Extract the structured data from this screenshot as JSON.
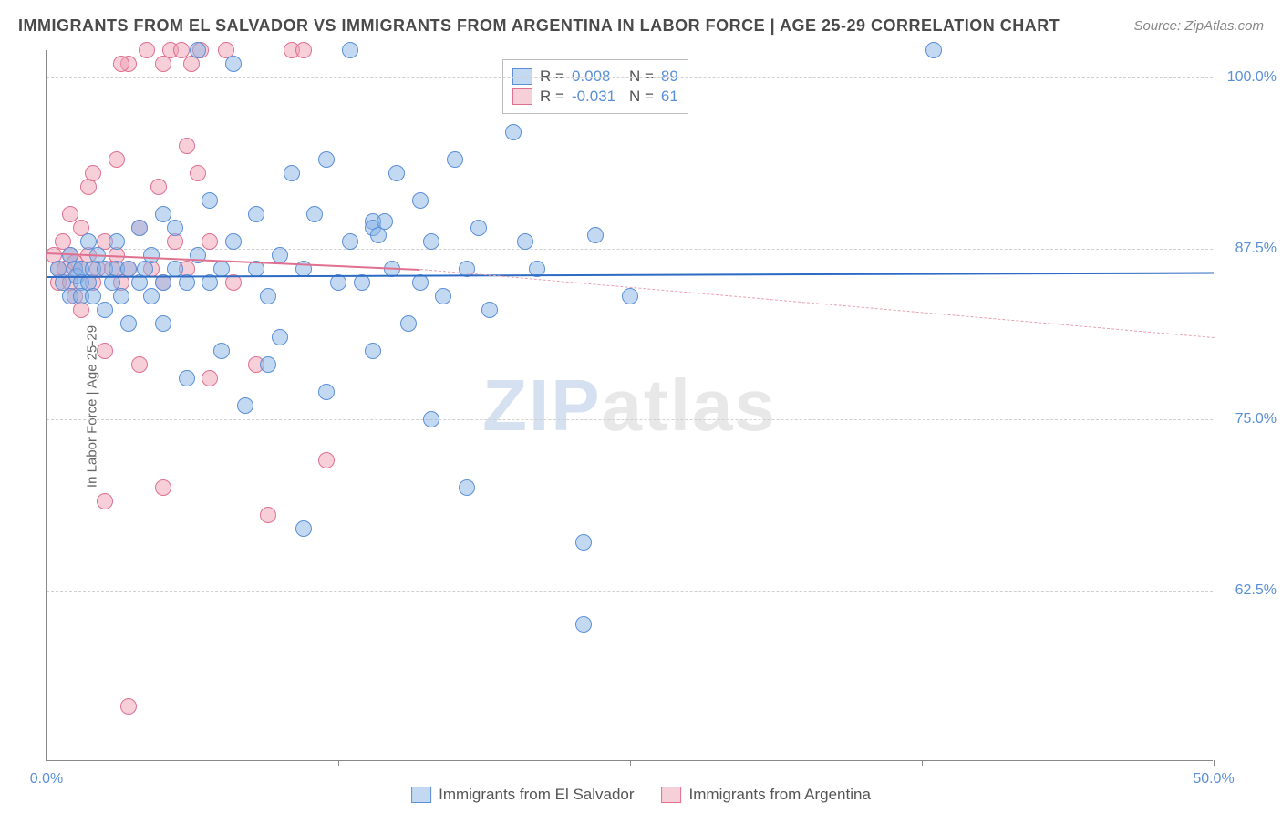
{
  "title": "IMMIGRANTS FROM EL SALVADOR VS IMMIGRANTS FROM ARGENTINA IN LABOR FORCE | AGE 25-29 CORRELATION CHART",
  "source": "Source: ZipAtlas.com",
  "y_axis_label": "In Labor Force | Age 25-29",
  "watermark_a": "ZIP",
  "watermark_b": "atlas",
  "chart": {
    "type": "scatter",
    "xlim": [
      0,
      50
    ],
    "ylim": [
      50,
      102
    ],
    "x_ticks": [
      0,
      12.5,
      25,
      37.5,
      50
    ],
    "x_tick_labels": {
      "0": "0.0%",
      "50": "50.0%"
    },
    "y_ticks": [
      62.5,
      75.0,
      87.5,
      100.0
    ],
    "y_tick_labels": [
      "62.5%",
      "75.0%",
      "87.5%",
      "100.0%"
    ],
    "grid_color": "#d0d0d0",
    "background_color": "#ffffff",
    "marker_size": 18,
    "series": [
      {
        "name": "Immigrants from El Salvador",
        "color_fill": "rgba(135,180,230,0.5)",
        "color_stroke": "#5b8fd6",
        "R": "0.008",
        "N": "89",
        "trend": {
          "x1": 0,
          "y1": 85.5,
          "x2": 50,
          "y2": 85.8,
          "color": "#2d6bc4",
          "width": 2,
          "style": "solid"
        },
        "points": [
          [
            0.5,
            86
          ],
          [
            0.7,
            85
          ],
          [
            1,
            87
          ],
          [
            1,
            84
          ],
          [
            1.2,
            86
          ],
          [
            1.3,
            85.5
          ],
          [
            1.5,
            86
          ],
          [
            1.5,
            85
          ],
          [
            1.5,
            84
          ],
          [
            1.8,
            88
          ],
          [
            1.8,
            85
          ],
          [
            2,
            86
          ],
          [
            2,
            84
          ],
          [
            2.2,
            87
          ],
          [
            2.5,
            83
          ],
          [
            2.5,
            86
          ],
          [
            2.8,
            85
          ],
          [
            3,
            86
          ],
          [
            3,
            88
          ],
          [
            3.2,
            84
          ],
          [
            3.5,
            86
          ],
          [
            3.5,
            82
          ],
          [
            4,
            85
          ],
          [
            4,
            89
          ],
          [
            4.2,
            86
          ],
          [
            4.5,
            84
          ],
          [
            4.5,
            87
          ],
          [
            5,
            90
          ],
          [
            5,
            85
          ],
          [
            5,
            82
          ],
          [
            5.5,
            86
          ],
          [
            5.5,
            89
          ],
          [
            6,
            85
          ],
          [
            6,
            78
          ],
          [
            6.5,
            102
          ],
          [
            6.5,
            87
          ],
          [
            7,
            85
          ],
          [
            7,
            91
          ],
          [
            7.5,
            86
          ],
          [
            7.5,
            80
          ],
          [
            8,
            88
          ],
          [
            8,
            101
          ],
          [
            8.5,
            76
          ],
          [
            9,
            86
          ],
          [
            9,
            90
          ],
          [
            9.5,
            79
          ],
          [
            9.5,
            84
          ],
          [
            10,
            81
          ],
          [
            10,
            87
          ],
          [
            10.5,
            93
          ],
          [
            11,
            67
          ],
          [
            11,
            86
          ],
          [
            11.5,
            90
          ],
          [
            12,
            94
          ],
          [
            12,
            77
          ],
          [
            12.5,
            85
          ],
          [
            13,
            88
          ],
          [
            13,
            102
          ],
          [
            13.5,
            85
          ],
          [
            14,
            89.5
          ],
          [
            14,
            89
          ],
          [
            14,
            80
          ],
          [
            14.2,
            88.5
          ],
          [
            14.5,
            89.5
          ],
          [
            14.8,
            86
          ],
          [
            15,
            93
          ],
          [
            15.5,
            82
          ],
          [
            16,
            91
          ],
          [
            16,
            85
          ],
          [
            16.5,
            88
          ],
          [
            16.5,
            75
          ],
          [
            17,
            84
          ],
          [
            17.5,
            94
          ],
          [
            18,
            86
          ],
          [
            18,
            70
          ],
          [
            18.5,
            89
          ],
          [
            19,
            83
          ],
          [
            20,
            96
          ],
          [
            20.5,
            88
          ],
          [
            21,
            86
          ],
          [
            23,
            66
          ],
          [
            23,
            60
          ],
          [
            23.5,
            88.5
          ],
          [
            25,
            84
          ],
          [
            38,
            102
          ]
        ]
      },
      {
        "name": "Immigrants from Argentina",
        "color_fill": "rgba(240,160,180,0.5)",
        "color_stroke": "#e07090",
        "R": "-0.031",
        "N": "61",
        "trend_solid": {
          "x1": 0,
          "y1": 87.2,
          "x2": 16,
          "y2": 86.0,
          "color": "#e07090",
          "width": 2,
          "style": "solid"
        },
        "trend_dash": {
          "x1": 16,
          "y1": 86.0,
          "x2": 50,
          "y2": 81.0,
          "color": "#e8a0b0",
          "width": 1.5,
          "style": "dashed"
        },
        "points": [
          [
            0.3,
            87
          ],
          [
            0.5,
            86
          ],
          [
            0.5,
            85
          ],
          [
            0.7,
            88
          ],
          [
            0.8,
            86
          ],
          [
            1,
            90
          ],
          [
            1,
            87
          ],
          [
            1,
            85
          ],
          [
            1.2,
            86.5
          ],
          [
            1.2,
            84
          ],
          [
            1.5,
            89
          ],
          [
            1.5,
            86
          ],
          [
            1.5,
            83
          ],
          [
            1.8,
            87
          ],
          [
            1.8,
            92
          ],
          [
            2,
            85
          ],
          [
            2,
            93
          ],
          [
            2.2,
            86
          ],
          [
            2.5,
            88
          ],
          [
            2.5,
            80
          ],
          [
            2.8,
            86
          ],
          [
            2.5,
            69
          ],
          [
            3,
            94
          ],
          [
            3,
            87
          ],
          [
            3.2,
            85
          ],
          [
            3.5,
            101
          ],
          [
            3.5,
            86
          ],
          [
            4,
            89
          ],
          [
            4,
            79
          ],
          [
            4.3,
            102
          ],
          [
            4.5,
            86
          ],
          [
            4.8,
            92
          ],
          [
            5,
            101
          ],
          [
            5,
            85
          ],
          [
            5,
            70
          ],
          [
            5.3,
            102
          ],
          [
            5.5,
            88
          ],
          [
            5.8,
            102
          ],
          [
            6,
            95
          ],
          [
            6,
            86
          ],
          [
            6.2,
            101
          ],
          [
            6.5,
            93
          ],
          [
            6.6,
            102
          ],
          [
            7,
            88
          ],
          [
            7,
            78
          ],
          [
            7.7,
            102
          ],
          [
            8,
            85
          ],
          [
            9,
            79
          ],
          [
            9.5,
            68
          ],
          [
            10.5,
            102
          ],
          [
            11,
            102
          ],
          [
            12,
            72
          ],
          [
            3.5,
            54
          ],
          [
            3.2,
            101
          ]
        ]
      }
    ]
  },
  "stats_box": {
    "rows": [
      {
        "swatch": "blue",
        "r_label": "R =",
        "r_val": "0.008",
        "n_label": "N =",
        "n_val": "89"
      },
      {
        "swatch": "pink",
        "r_label": "R =",
        "r_val": "-0.031",
        "n_label": "N =",
        "n_val": "61"
      }
    ]
  },
  "bottom_legend": [
    {
      "swatch": "blue",
      "label": "Immigrants from El Salvador"
    },
    {
      "swatch": "pink",
      "label": "Immigrants from Argentina"
    }
  ]
}
